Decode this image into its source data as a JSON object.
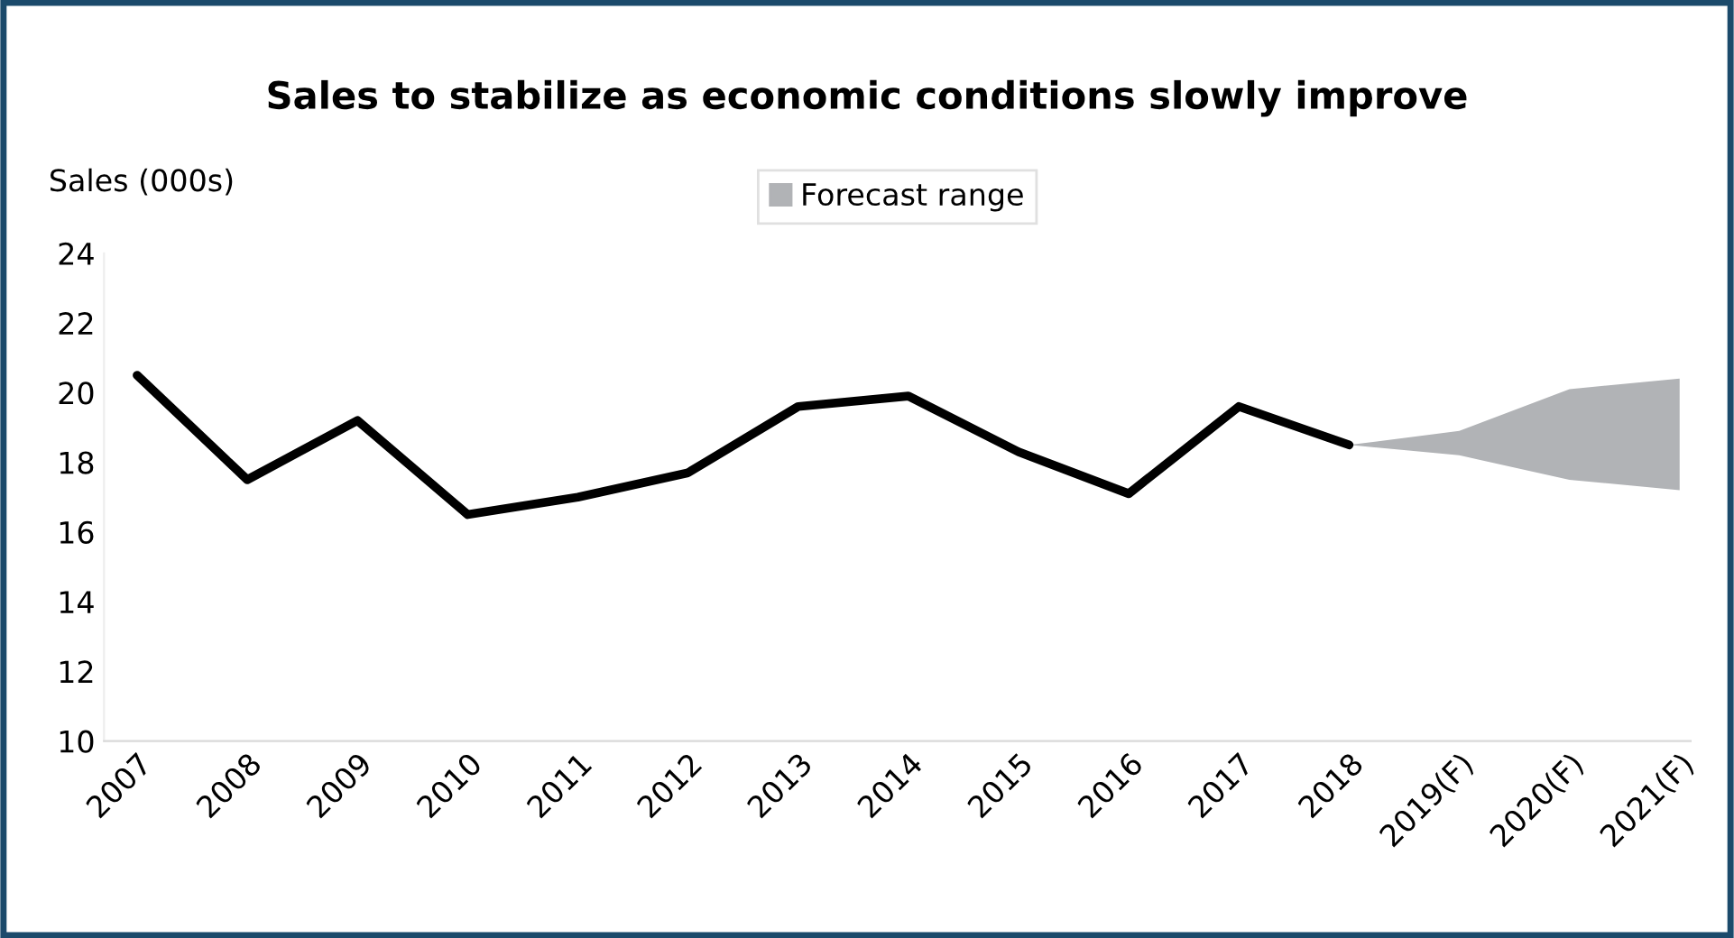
{
  "chart_data": {
    "type": "line",
    "title": "Sales to stabilize as economic conditions slowly improve",
    "ylabel": "Sales (000s)",
    "categories": [
      "2007",
      "2008",
      "2009",
      "2010",
      "2011",
      "2012",
      "2013",
      "2014",
      "2015",
      "2016",
      "2017",
      "2018",
      "2019(F)",
      "2020(F)",
      "2021(F)"
    ],
    "series": [
      {
        "color": "#000000",
        "values": [
          20.5,
          17.5,
          19.2,
          16.5,
          17.0,
          17.7,
          19.6,
          19.9,
          18.3,
          17.1,
          19.6,
          18.5,
          null,
          null,
          null
        ]
      },
      {
        "type": "area",
        "name": "Forecast range",
        "color": "#b1b3b6",
        "values": [
          null,
          null,
          null,
          null,
          null,
          null,
          null,
          null,
          null,
          null,
          null,
          null,
          null,
          null,
          null
        ],
        "lower": [
          null,
          null,
          null,
          null,
          null,
          null,
          null,
          null,
          null,
          null,
          null,
          18.5,
          18.2,
          17.5,
          17.2
        ],
        "upper": [
          null,
          null,
          null,
          null,
          null,
          null,
          null,
          null,
          null,
          null,
          null,
          18.5,
          18.9,
          20.1,
          20.4
        ]
      }
    ],
    "ylim": [
      10,
      24
    ],
    "yticks": [
      10,
      12,
      14,
      16,
      18,
      20,
      22,
      24
    ],
    "grid": false,
    "legend": "top",
    "marker": "none",
    "line_style": "solid"
  }
}
